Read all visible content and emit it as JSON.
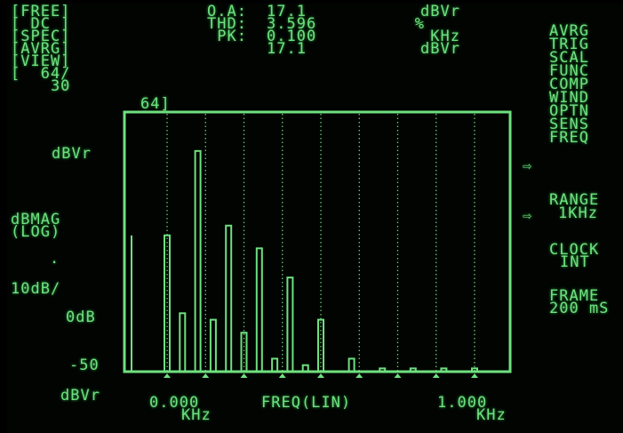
{
  "status_block": {
    "lines": [
      "[FREE]",
      "[ DC ]",
      "[SPEC]",
      "[AVRG]",
      "[VIEW]",
      "[  64/",
      "    30"
    ],
    "frame_count": "64]"
  },
  "readouts": {
    "labels": [
      "O.A:",
      "THD:",
      "PK:",
      ""
    ],
    "values": [
      "17.1",
      "3.596",
      "0.100",
      "17.1"
    ],
    "units": [
      "dBVr",
      "%",
      "KHz",
      "dBVr"
    ]
  },
  "right_menu": {
    "items": [
      "AVRG",
      "TRIG",
      "SCAL",
      "FUNC",
      "COMP",
      "WIND",
      "OPTN",
      "SENS",
      "FREQ"
    ],
    "selected_marker": "⇨",
    "range_label": "RANGE",
    "range_value": "1KHz",
    "clock_label": "CLOCK",
    "clock_value": "INT",
    "frame_label": "FRAME",
    "frame_value": "200 mS"
  },
  "y_axis": {
    "top_unit": "dBVr",
    "mode_line1": "dBMAG",
    "mode_line2": "(LOG)",
    "dot": ".",
    "scale": "10dB/",
    "ref_label": "0dB",
    "bottom_label": "-50",
    "bottom_unit": "dBVr"
  },
  "x_axis": {
    "start_value": "0.000",
    "start_unit": "KHz",
    "center_label": "FREQ(LIN)",
    "end_value": "1.000",
    "end_unit": "KHz"
  },
  "chart_data": {
    "type": "bar",
    "description_units": "dBVr",
    "x_unit": "KHz",
    "xlim": [
      0,
      1
    ],
    "ylim": [
      -50,
      30
    ],
    "grid": true,
    "bars": [
      {
        "x": 0.0,
        "y": -8
      },
      {
        "x": 0.05,
        "y": -32
      },
      {
        "x": 0.1,
        "y": 18
      },
      {
        "x": 0.15,
        "y": -34
      },
      {
        "x": 0.2,
        "y": -5
      },
      {
        "x": 0.25,
        "y": -38
      },
      {
        "x": 0.3,
        "y": -12
      },
      {
        "x": 0.35,
        "y": -46
      },
      {
        "x": 0.4,
        "y": -21
      },
      {
        "x": 0.45,
        "y": -48
      },
      {
        "x": 0.5,
        "y": -34
      },
      {
        "x": 0.6,
        "y": -46
      },
      {
        "x": 0.7,
        "y": -49
      },
      {
        "x": 0.8,
        "y": -49
      },
      {
        "x": 0.9,
        "y": -49
      },
      {
        "x": 1.0,
        "y": -49
      }
    ]
  },
  "colors": {
    "phosphor": "#6fe07f",
    "background": "#020402"
  }
}
